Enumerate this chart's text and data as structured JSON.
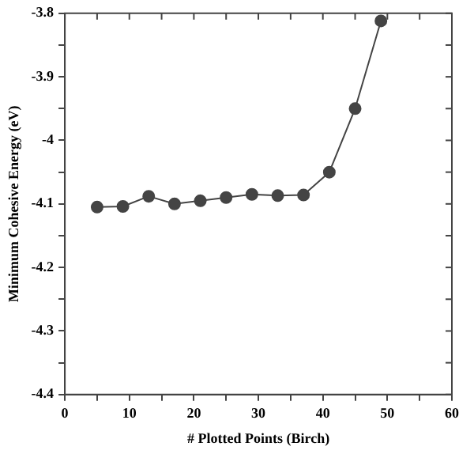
{
  "chart_data": {
    "type": "line",
    "xlabel": "# Plotted Points (Birch)",
    "ylabel": "Minimum Cohesive Energy (eV)",
    "x": [
      5,
      9,
      13,
      17,
      21,
      25,
      29,
      33,
      37,
      41,
      45,
      49
    ],
    "series": [
      {
        "color": "#444444",
        "values": [
          -4.105,
          -4.104,
          -4.088,
          -4.1,
          -4.095,
          -4.09,
          -4.085,
          -4.087,
          -4.086,
          -4.05,
          -3.95,
          -3.812
        ]
      }
    ],
    "xlim": [
      0,
      60
    ],
    "ylim": [
      -4.4,
      -3.8
    ],
    "xticks": [
      0,
      {
        "value": 5,
        "label": null
      },
      10,
      {
        "value": 15,
        "label": null
      },
      20,
      {
        "value": 25,
        "label": null
      },
      30,
      {
        "value": 35,
        "label": null
      },
      40,
      {
        "value": 45,
        "label": null
      },
      50,
      {
        "value": 55,
        "label": null
      },
      60
    ],
    "yticks": [
      -4.4,
      {
        "value": -4.35,
        "label": null
      },
      -4.3,
      {
        "value": -4.25,
        "label": null
      },
      -4.2,
      {
        "value": -4.15,
        "label": null
      },
      -4.1,
      {
        "value": -4.05,
        "label": null
      },
      -4,
      {
        "value": -3.95,
        "label": null
      },
      -3.9,
      {
        "value": -3.85,
        "label": null
      },
      -3.8
    ],
    "marker": "circle",
    "line_style": "solid",
    "grid": false,
    "legend": false
  }
}
